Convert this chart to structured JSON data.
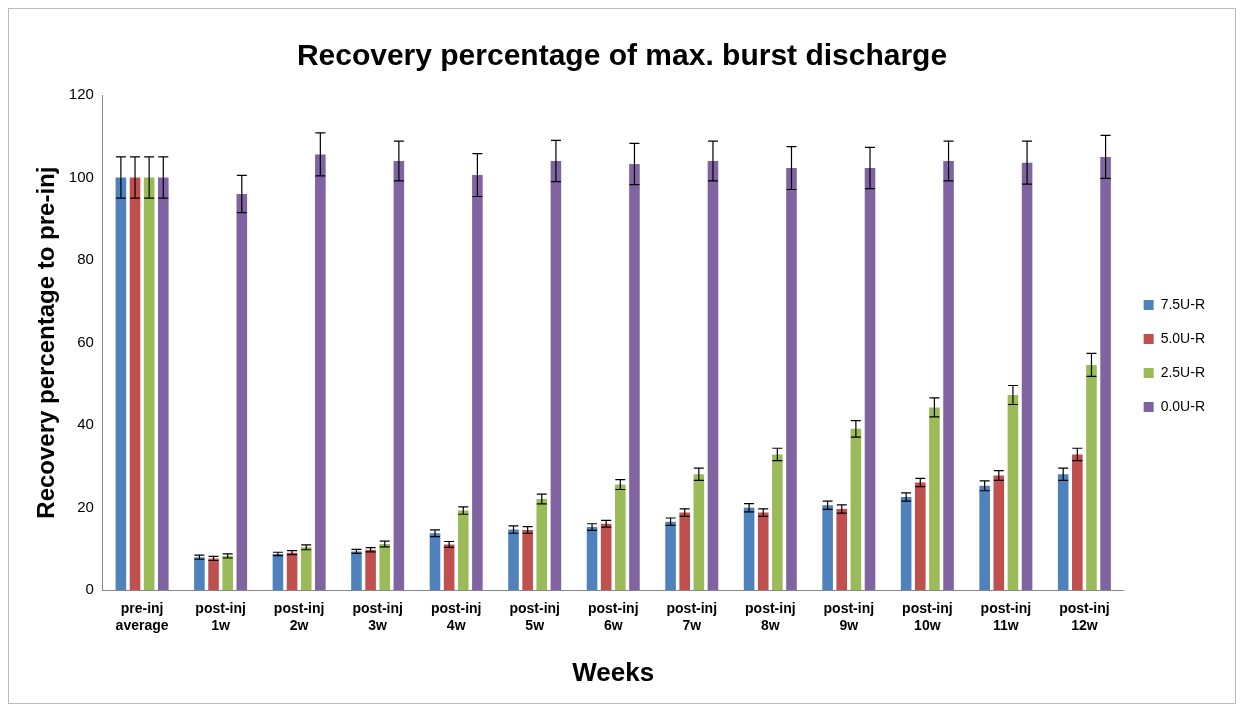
{
  "chart_data": {
    "type": "bar",
    "title": "Recovery percentage of max. burst discharge",
    "xlabel": "Weeks",
    "ylabel": "Recovery percentage to pre-inj",
    "categories": [
      "pre-inj average",
      "post-inj 1w",
      "post-inj 2w",
      "post-inj 3w",
      "post-inj 4w",
      "post-inj 5w",
      "post-inj 6w",
      "post-inj 7w",
      "post-inj 8w",
      "post-inj 9w",
      "post-inj 10w",
      "post-inj 11w",
      "post-inj 12w"
    ],
    "series": [
      {
        "name": "7.5U-R",
        "color": "#4f81bd",
        "values": [
          100,
          8,
          8.8,
          9.4,
          13.8,
          14.7,
          15.3,
          16.6,
          20,
          20.6,
          22.6,
          25.3,
          28.1
        ],
        "errors": [
          5,
          0.5,
          0.4,
          0.5,
          0.8,
          0.9,
          0.8,
          0.9,
          1,
          1,
          1,
          1.2,
          1.5
        ]
      },
      {
        "name": "5.0U-R",
        "color": "#c0504d",
        "values": [
          100,
          7.7,
          9.1,
          9.8,
          11.1,
          14.6,
          16.1,
          18.8,
          18.8,
          19.7,
          26.1,
          27.8,
          32.9
        ],
        "errors": [
          5,
          0.5,
          0.5,
          0.5,
          0.7,
          0.8,
          0.8,
          0.9,
          0.9,
          1,
          1,
          1.2,
          1.5
        ]
      },
      {
        "name": "2.5U-R",
        "color": "#9bbb59",
        "values": [
          100,
          8.3,
          10.4,
          11.2,
          19.3,
          22.1,
          25.6,
          28.1,
          32.9,
          39.1,
          44.3,
          47.3,
          54.6
        ],
        "errors": [
          5,
          0.5,
          0.6,
          0.7,
          0.9,
          1.2,
          1.2,
          1.5,
          1.5,
          2,
          2.3,
          2.3,
          2.8
        ]
      },
      {
        "name": "0.0U-R",
        "color": "#8064a2",
        "values": [
          100,
          96,
          105.6,
          104,
          100.6,
          104,
          103.3,
          104,
          102.3,
          102.3,
          104,
          103.6,
          105
        ],
        "errors": [
          5,
          4.5,
          5.2,
          4.8,
          5.2,
          5,
          5,
          4.8,
          5.2,
          5,
          4.8,
          5.2,
          5.2
        ]
      }
    ],
    "ylim": [
      0,
      120
    ],
    "yticks": [
      0,
      20,
      40,
      60,
      80,
      100,
      120
    ],
    "grid": false,
    "legend": "right"
  }
}
